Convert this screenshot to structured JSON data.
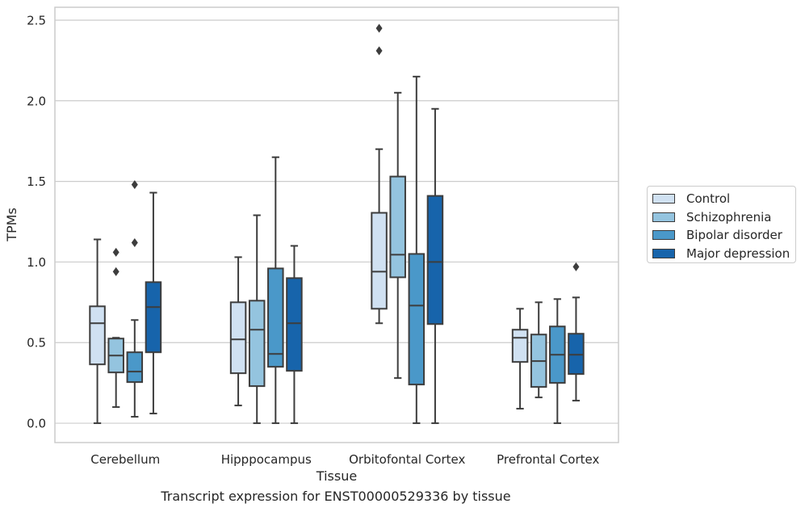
{
  "chart_data": {
    "type": "box",
    "xlabel": "Tissue",
    "ylabel": "TPMs",
    "caption": "Transcript expression for ENST00000529336 by tissue",
    "categories": [
      "Cerebellum",
      "Hipppocampus",
      "Orbitofontal Cortex",
      "Prefrontal Cortex"
    ],
    "ylim": [
      -0.12,
      2.58
    ],
    "yticks": [
      "0.0",
      "0.5",
      "1.0",
      "1.5",
      "2.0",
      "2.5"
    ],
    "grid": true,
    "legend_position": "right",
    "series": [
      {
        "name": "Control",
        "color": "#d0e1f2",
        "boxes": [
          {
            "whisker_low": 0.0,
            "q1": 0.365,
            "median": 0.62,
            "q3": 0.725,
            "whisker_high": 1.14,
            "outliers": []
          },
          {
            "whisker_low": 0.11,
            "q1": 0.31,
            "median": 0.52,
            "q3": 0.75,
            "whisker_high": 1.03,
            "outliers": []
          },
          {
            "whisker_low": 0.62,
            "q1": 0.71,
            "median": 0.94,
            "q3": 1.305,
            "whisker_high": 1.7,
            "outliers": [
              2.31,
              2.45
            ]
          },
          {
            "whisker_low": 0.09,
            "q1": 0.38,
            "median": 0.53,
            "q3": 0.58,
            "whisker_high": 0.71,
            "outliers": []
          }
        ]
      },
      {
        "name": "Schizophrenia",
        "color": "#94c4df",
        "boxes": [
          {
            "whisker_low": 0.1,
            "q1": 0.315,
            "median": 0.42,
            "q3": 0.525,
            "whisker_high": 0.53,
            "outliers": [
              0.94,
              1.06
            ]
          },
          {
            "whisker_low": 0.0,
            "q1": 0.23,
            "median": 0.58,
            "q3": 0.76,
            "whisker_high": 1.29,
            "outliers": []
          },
          {
            "whisker_low": 0.28,
            "q1": 0.905,
            "median": 1.045,
            "q3": 1.53,
            "whisker_high": 2.05,
            "outliers": []
          },
          {
            "whisker_low": 0.16,
            "q1": 0.225,
            "median": 0.385,
            "q3": 0.55,
            "whisker_high": 0.75,
            "outliers": []
          }
        ]
      },
      {
        "name": "Bipolar disorder",
        "color": "#4a98c9",
        "boxes": [
          {
            "whisker_low": 0.04,
            "q1": 0.255,
            "median": 0.32,
            "q3": 0.44,
            "whisker_high": 0.64,
            "outliers": [
              1.12,
              1.48
            ]
          },
          {
            "whisker_low": 0.0,
            "q1": 0.35,
            "median": 0.43,
            "q3": 0.96,
            "whisker_high": 1.65,
            "outliers": []
          },
          {
            "whisker_low": 0.0,
            "q1": 0.24,
            "median": 0.73,
            "q3": 1.05,
            "whisker_high": 2.15,
            "outliers": []
          },
          {
            "whisker_low": 0.0,
            "q1": 0.25,
            "median": 0.425,
            "q3": 0.6,
            "whisker_high": 0.77,
            "outliers": []
          }
        ]
      },
      {
        "name": "Major depression",
        "color": "#1764ab",
        "boxes": [
          {
            "whisker_low": 0.06,
            "q1": 0.44,
            "median": 0.72,
            "q3": 0.875,
            "whisker_high": 1.43,
            "outliers": []
          },
          {
            "whisker_low": 0.0,
            "q1": 0.325,
            "median": 0.62,
            "q3": 0.9,
            "whisker_high": 1.1,
            "outliers": []
          },
          {
            "whisker_low": 0.0,
            "q1": 0.615,
            "median": 1.0,
            "q3": 1.41,
            "whisker_high": 1.95,
            "outliers": []
          },
          {
            "whisker_low": 0.14,
            "q1": 0.305,
            "median": 0.425,
            "q3": 0.555,
            "whisker_high": 0.78,
            "outliers": [
              0.97
            ]
          }
        ]
      }
    ]
  }
}
